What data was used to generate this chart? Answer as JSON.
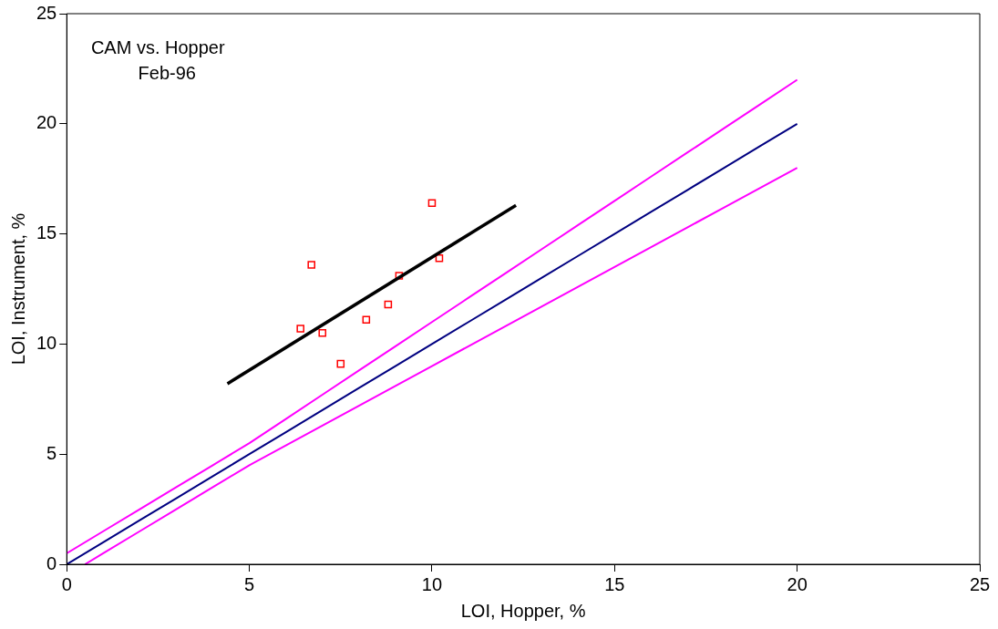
{
  "chart_data": {
    "type": "scatter",
    "xlabel": "LOI, Hopper, %",
    "ylabel": "LOI, Instrument, %",
    "annotations": [
      "CAM vs. Hopper",
      "Feb-96"
    ],
    "xlim": [
      0,
      25
    ],
    "ylim": [
      0,
      25
    ],
    "xticks": [
      0,
      5,
      10,
      15,
      20,
      25
    ],
    "yticks": [
      0,
      5,
      10,
      15,
      20,
      25
    ],
    "grid": false,
    "legend": false,
    "series": [
      {
        "type": "line",
        "color": "#ff00ff",
        "marker": "none",
        "x": [
          0,
          1,
          2,
          3,
          4,
          5,
          6,
          7,
          8,
          9,
          10,
          11,
          12,
          13,
          14,
          15,
          16,
          17,
          18,
          19,
          20
        ],
        "values": [
          0.5,
          1.5,
          2.5,
          3.5,
          4.5,
          5.5,
          6.6,
          7.7,
          8.8,
          9.9,
          11,
          12.1,
          13.2,
          14.3,
          15.4,
          16.5,
          17.6,
          18.7,
          19.8,
          20.9,
          22
        ]
      },
      {
        "type": "line",
        "color": "#000080",
        "marker": "none",
        "x": [
          0,
          1,
          2,
          3,
          4,
          5,
          6,
          7,
          8,
          9,
          10,
          11,
          12,
          13,
          14,
          15,
          16,
          17,
          18,
          19,
          20
        ],
        "values": [
          0,
          1,
          2,
          3,
          4,
          5,
          6,
          7,
          8,
          9,
          10,
          11,
          12,
          13,
          14,
          15,
          16,
          17,
          18,
          19,
          20
        ]
      },
      {
        "type": "line",
        "color": "#ff00ff",
        "marker": "none",
        "x": [
          0.5,
          1,
          2,
          3,
          4,
          5,
          6,
          7,
          8,
          9,
          10,
          11,
          12,
          13,
          14,
          15,
          16,
          17,
          18,
          19,
          20
        ],
        "values": [
          0,
          0.5,
          1.5,
          2.5,
          3.5,
          4.5,
          5.4,
          6.3,
          7.2,
          8.1,
          9,
          9.9,
          10.8,
          11.7,
          12.6,
          13.5,
          14.4,
          15.3,
          16.2,
          17.1,
          18
        ]
      },
      {
        "type": "line",
        "color": "#000000",
        "marker": "none",
        "x": [
          4.4,
          12.3
        ],
        "values": [
          8.2,
          16.3
        ]
      },
      {
        "color": "#ff0000",
        "marker": "square",
        "x": [
          6.4,
          6.7,
          7.0,
          7.5,
          8.2,
          8.8,
          9.1,
          10.0,
          10.2
        ],
        "values": [
          10.7,
          13.6,
          10.5,
          9.1,
          11.1,
          11.8,
          13.1,
          16.4,
          13.9
        ]
      }
    ]
  }
}
